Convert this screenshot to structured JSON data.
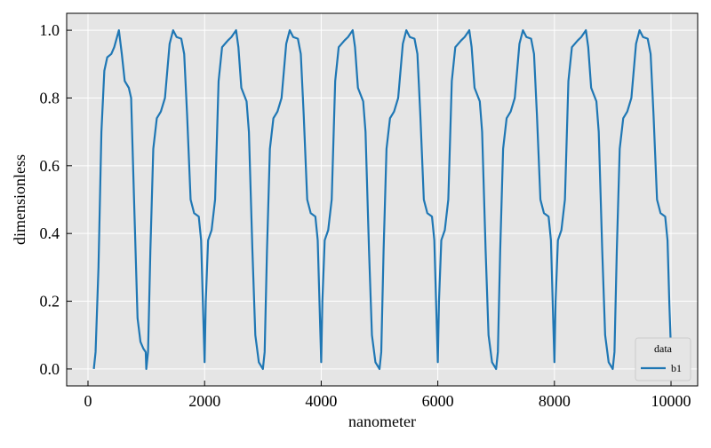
{
  "chart_data": {
    "type": "line",
    "xlabel": "nanometer",
    "ylabel": "dimensionless",
    "x": [
      100,
      130,
      180,
      230,
      280,
      330,
      400,
      450,
      530,
      580,
      630,
      700,
      740,
      790,
      850,
      900,
      950,
      990,
      1000,
      1030,
      1070,
      1120,
      1180,
      1250,
      1320,
      1400,
      1460,
      1520,
      1600,
      1650,
      1700,
      1760,
      1820,
      1900,
      1940,
      1970,
      2000,
      2020,
      2060,
      2120,
      2180,
      2240,
      2300,
      2400,
      2460,
      2540,
      2580,
      2630,
      2720,
      2760,
      2820,
      2870,
      2930,
      3000,
      3030,
      3070,
      3120,
      3180,
      3250,
      3320,
      3400,
      3460,
      3520,
      3600,
      3650,
      3700,
      3760,
      3820,
      3900,
      3940,
      3970,
      4000,
      4020,
      4060,
      4120,
      4180,
      4240,
      4300,
      4400,
      4460,
      4540,
      4580,
      4630,
      4720,
      4760,
      4820,
      4870,
      4930,
      5000,
      5030,
      5070,
      5120,
      5180,
      5250,
      5320,
      5400,
      5460,
      5520,
      5600,
      5650,
      5700,
      5760,
      5820,
      5900,
      5940,
      5970,
      6000,
      6020,
      6060,
      6120,
      6180,
      6240,
      6300,
      6400,
      6460,
      6540,
      6580,
      6630,
      6720,
      6760,
      6820,
      6870,
      6930,
      7000,
      7030,
      7070,
      7120,
      7180,
      7250,
      7320,
      7400,
      7460,
      7520,
      7600,
      7650,
      7700,
      7760,
      7820,
      7900,
      7940,
      7970,
      8000,
      8020,
      8060,
      8120,
      8180,
      8240,
      8300,
      8400,
      8460,
      8540,
      8580,
      8630,
      8720,
      8760,
      8820,
      8870,
      8930,
      9000,
      9030,
      9070,
      9120,
      9180,
      9250,
      9320,
      9400,
      9460,
      9520,
      9600,
      9650,
      9700,
      9760,
      9820,
      9900,
      9940,
      9970,
      10000
    ],
    "series": [
      {
        "name": "b1",
        "color": "#1f77b4",
        "values": [
          0.0,
          0.05,
          0.3,
          0.7,
          0.88,
          0.92,
          0.93,
          0.95,
          1.0,
          0.93,
          0.85,
          0.83,
          0.8,
          0.5,
          0.15,
          0.08,
          0.06,
          0.05,
          0.0,
          0.05,
          0.35,
          0.65,
          0.74,
          0.76,
          0.8,
          0.96,
          1.0,
          0.98,
          0.975,
          0.93,
          0.75,
          0.5,
          0.46,
          0.45,
          0.38,
          0.2,
          0.02,
          0.2,
          0.38,
          0.41,
          0.5,
          0.85,
          0.95,
          0.97,
          0.98,
          1.0,
          0.95,
          0.83,
          0.79,
          0.7,
          0.35,
          0.1,
          0.02,
          0.0,
          0.05,
          0.35,
          0.65,
          0.74,
          0.76,
          0.8,
          0.96,
          1.0,
          0.98,
          0.975,
          0.93,
          0.75,
          0.5,
          0.46,
          0.45,
          0.38,
          0.2,
          0.02,
          0.2,
          0.38,
          0.41,
          0.5,
          0.85,
          0.95,
          0.97,
          0.98,
          1.0,
          0.95,
          0.83,
          0.79,
          0.7,
          0.35,
          0.1,
          0.02,
          0.0,
          0.05,
          0.35,
          0.65,
          0.74,
          0.76,
          0.8,
          0.96,
          1.0,
          0.98,
          0.975,
          0.93,
          0.75,
          0.5,
          0.46,
          0.45,
          0.38,
          0.2,
          0.02,
          0.2,
          0.38,
          0.41,
          0.5,
          0.85,
          0.95,
          0.97,
          0.98,
          1.0,
          0.95,
          0.83,
          0.79,
          0.7,
          0.35,
          0.1,
          0.02,
          0.0,
          0.05,
          0.35,
          0.65,
          0.74,
          0.76,
          0.8,
          0.96,
          1.0,
          0.98,
          0.975,
          0.93,
          0.75,
          0.5,
          0.46,
          0.45,
          0.38,
          0.2,
          0.02,
          0.2,
          0.38,
          0.41,
          0.5,
          0.85,
          0.95,
          0.97,
          0.98,
          1.0,
          0.95,
          0.83,
          0.79,
          0.7,
          0.35,
          0.1,
          0.02,
          0.0,
          0.05,
          0.35,
          0.65,
          0.74,
          0.76,
          0.8,
          0.96,
          1.0,
          0.98,
          0.975,
          0.93,
          0.75,
          0.5,
          0.46,
          0.45,
          0.38,
          0.2,
          0.05
        ]
      }
    ],
    "xlim": [
      -366,
      10457
    ],
    "xticks": [
      0,
      2000,
      4000,
      6000,
      8000,
      10000
    ],
    "ylim": [
      -0.05,
      1.05
    ],
    "yticks": [
      {
        "value": 0,
        "label": "0.0"
      },
      0.2,
      0.4,
      0.6,
      0.8,
      {
        "value": 1,
        "label": "1.0"
      }
    ],
    "grid": true,
    "legend": {
      "title": "data",
      "loc": "lower right"
    }
  }
}
